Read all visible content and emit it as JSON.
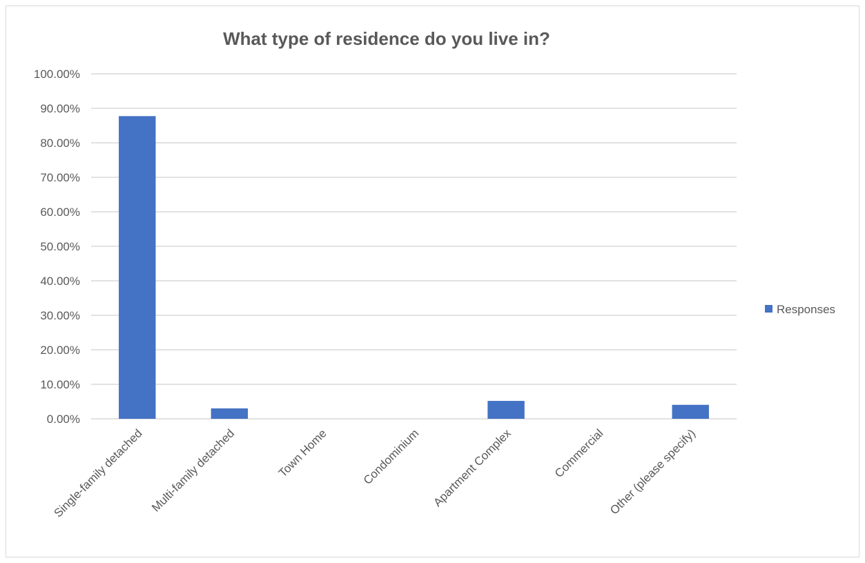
{
  "chart_data": {
    "type": "bar",
    "title": "What type of residence do you live in?",
    "categories": [
      "Single-family detached",
      "Multi-family detached",
      "Town Home",
      "Condominium",
      "Apartment Complex",
      "Commercial",
      "Other (please specify)"
    ],
    "series": [
      {
        "name": "Responses",
        "values": [
          0.8774,
          0.0302,
          0.0,
          0.0,
          0.0519,
          0.0,
          0.0405
        ]
      }
    ],
    "ylim": [
      0,
      1
    ],
    "y_ticks": [
      "0.00%",
      "10.00%",
      "20.00%",
      "30.00%",
      "40.00%",
      "50.00%",
      "60.00%",
      "70.00%",
      "80.00%",
      "90.00%",
      "100.00%"
    ],
    "xlabel": "",
    "ylabel": "",
    "grid": true,
    "legend_position": "right",
    "colors": {
      "bar": "#4472c4",
      "grid": "#d9d9d9",
      "text": "#595959"
    }
  }
}
